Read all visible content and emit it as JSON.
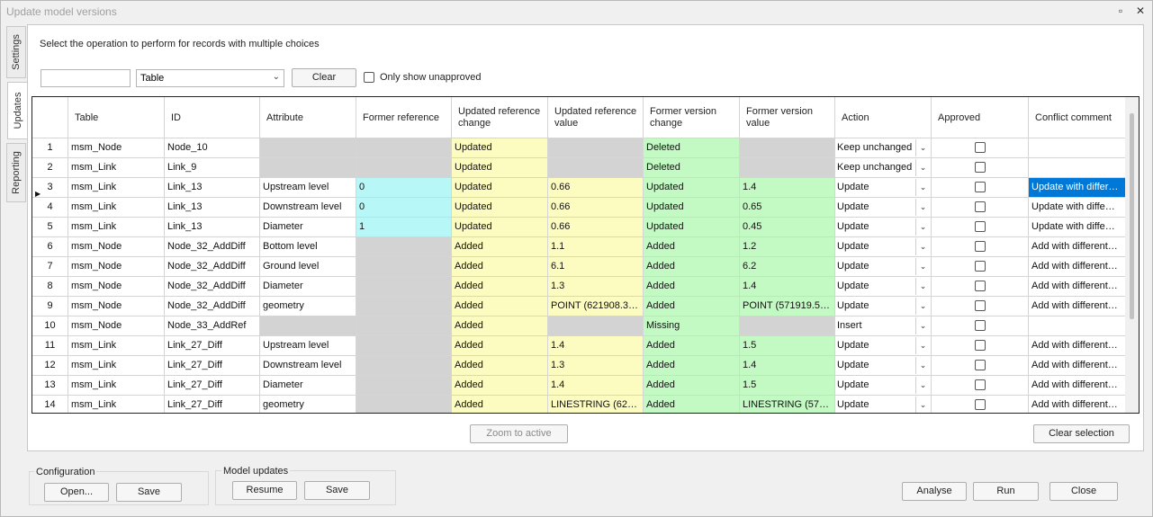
{
  "window": {
    "title": "Update model versions",
    "restore_icon": "▫",
    "close_icon": "✕"
  },
  "tabs": [
    {
      "label": "Settings"
    },
    {
      "label": "Updates"
    },
    {
      "label": "Reporting"
    }
  ],
  "toolbar": {
    "instruction": "Select the operation to perform for records with multiple choices",
    "filter_value": "",
    "column_select": "Table",
    "clear_label": "Clear",
    "only_unapproved_label": "Only show unapproved",
    "only_unapproved_checked": false
  },
  "grid": {
    "columns": [
      "",
      "Table",
      "ID",
      "Attribute",
      "Former reference",
      "Updated reference change",
      "Updated reference value",
      "Former version change",
      "Former version value",
      "Action",
      "Approved",
      "Conflict comment"
    ],
    "rows": [
      {
        "n": "1",
        "table": "msm_Node",
        "id": "Node_10",
        "attr": "",
        "fref": "",
        "uchg": "Updated",
        "uval": "",
        "fchg": "Deleted",
        "fval": "",
        "action": "Keep unchanged",
        "approved": false,
        "comment": ""
      },
      {
        "n": "2",
        "table": "msm_Link",
        "id": "Link_9",
        "attr": "",
        "fref": "",
        "uchg": "Updated",
        "uval": "",
        "fchg": "Deleted",
        "fval": "",
        "action": "Keep unchanged",
        "approved": false,
        "comment": ""
      },
      {
        "n": "3",
        "table": "msm_Link",
        "id": "Link_13",
        "attr": "Upstream level",
        "fref": "0",
        "uchg": "Updated",
        "uval": "0.66",
        "fchg": "Updated",
        "fval": "1.4",
        "action": "Update",
        "approved": false,
        "comment": "Update with differ…",
        "current": true,
        "selected_comment": true
      },
      {
        "n": "4",
        "table": "msm_Link",
        "id": "Link_13",
        "attr": "Downstream level",
        "fref": "0",
        "uchg": "Updated",
        "uval": "0.66",
        "fchg": "Updated",
        "fval": "0.65",
        "action": "Update",
        "approved": false,
        "comment": "Update with diffe…"
      },
      {
        "n": "5",
        "table": "msm_Link",
        "id": "Link_13",
        "attr": "Diameter",
        "fref": "1",
        "uchg": "Updated",
        "uval": "0.66",
        "fchg": "Updated",
        "fval": "0.45",
        "action": "Update",
        "approved": false,
        "comment": "Update with diffe…"
      },
      {
        "n": "6",
        "table": "msm_Node",
        "id": "Node_32_AddDiff",
        "attr": "Bottom level",
        "fref": "",
        "uchg": "Added",
        "uval": "1.1",
        "fchg": "Added",
        "fval": "1.2",
        "action": "Update",
        "approved": false,
        "comment": "Add with different…"
      },
      {
        "n": "7",
        "table": "msm_Node",
        "id": "Node_32_AddDiff",
        "attr": "Ground level",
        "fref": "",
        "uchg": "Added",
        "uval": "6.1",
        "fchg": "Added",
        "fval": "6.2",
        "action": "Update",
        "approved": false,
        "comment": "Add with different…"
      },
      {
        "n": "8",
        "table": "msm_Node",
        "id": "Node_32_AddDiff",
        "attr": "Diameter",
        "fref": "",
        "uchg": "Added",
        "uval": "1.3",
        "fchg": "Added",
        "fval": "1.4",
        "action": "Update",
        "approved": false,
        "comment": "Add with different…"
      },
      {
        "n": "9",
        "table": "msm_Node",
        "id": "Node_32_AddDiff",
        "attr": "geometry",
        "fref": "",
        "uchg": "Added",
        "uval": "POINT (621908.3…",
        "fchg": "Added",
        "fval": "POINT (571919.5…",
        "action": "Update",
        "approved": false,
        "comment": "Add with different…"
      },
      {
        "n": "10",
        "table": "msm_Node",
        "id": "Node_33_AddRef",
        "attr": "",
        "fref": "",
        "uchg": "Added",
        "uval": "",
        "fchg": "Missing",
        "fval": "",
        "action": "Insert",
        "approved": false,
        "comment": ""
      },
      {
        "n": "11",
        "table": "msm_Link",
        "id": "Link_27_Diff",
        "attr": "Upstream level",
        "fref": "",
        "uchg": "Added",
        "uval": "1.4",
        "fchg": "Added",
        "fval": "1.5",
        "action": "Update",
        "approved": false,
        "comment": "Add with different…"
      },
      {
        "n": "12",
        "table": "msm_Link",
        "id": "Link_27_Diff",
        "attr": "Downstream level",
        "fref": "",
        "uchg": "Added",
        "uval": "1.3",
        "fchg": "Added",
        "fval": "1.4",
        "action": "Update",
        "approved": false,
        "comment": "Add with different…"
      },
      {
        "n": "13",
        "table": "msm_Link",
        "id": "Link_27_Diff",
        "attr": "Diameter",
        "fref": "",
        "uchg": "Added",
        "uval": "1.4",
        "fchg": "Added",
        "fval": "1.5",
        "action": "Update",
        "approved": false,
        "comment": "Add with different…"
      },
      {
        "n": "14",
        "table": "msm_Link",
        "id": "Link_27_Diff",
        "attr": "geometry",
        "fref": "",
        "uchg": "Added",
        "uval": "LINESTRING (621…",
        "fchg": "Added",
        "fval": "LINESTRING (571…",
        "action": "Update",
        "approved": false,
        "comment": "Add with different…"
      }
    ]
  },
  "below_grid": {
    "zoom_label": "Zoom to active",
    "clear_selection_label": "Clear selection"
  },
  "configuration": {
    "title": "Configuration",
    "open_label": "Open...",
    "save_label": "Save"
  },
  "model_updates": {
    "title": "Model updates",
    "resume_label": "Resume",
    "save_label": "Save"
  },
  "footer": {
    "analyse_label": "Analyse",
    "run_label": "Run",
    "close_label": "Close"
  },
  "colors": {
    "gray": "#d3d3d3",
    "cyan": "#b8f7f7",
    "yellow": "#fdfcc0",
    "green": "#c3fac3",
    "selection": "#0078d7"
  }
}
